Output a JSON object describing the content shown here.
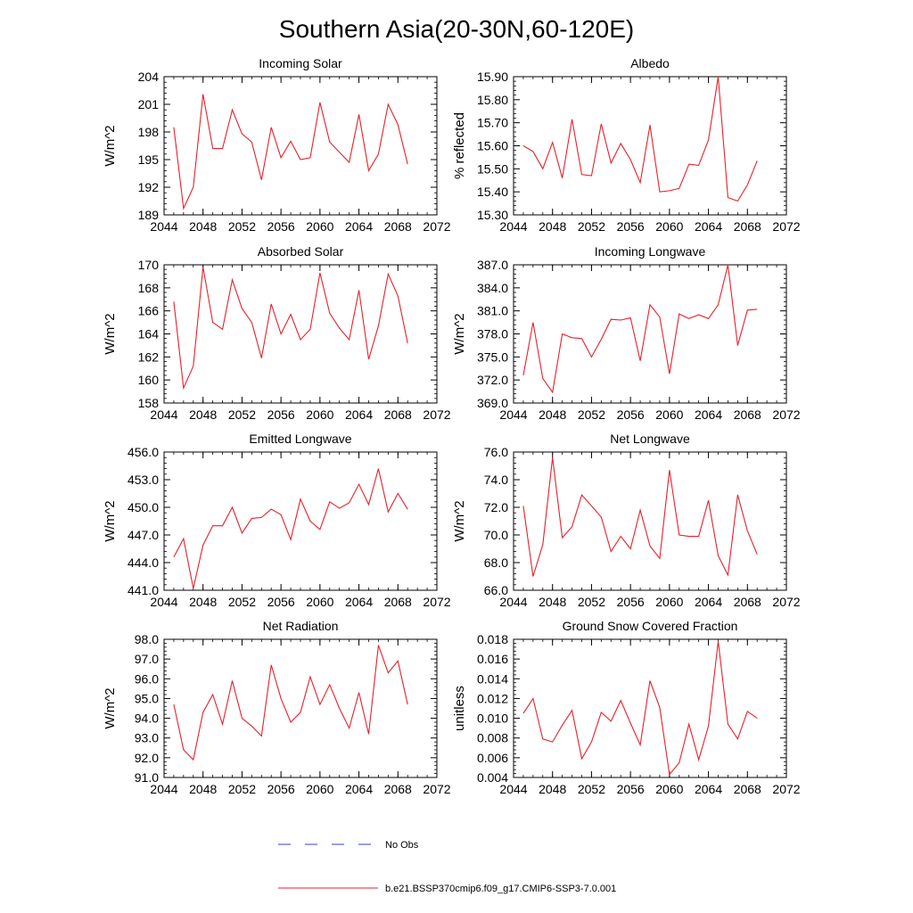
{
  "figure": {
    "title": "Southern Asia(20-30N,60-120E)",
    "legend": {
      "entries": [
        {
          "label": "No Obs",
          "style": "dashed",
          "color": "#3b3bd6"
        },
        {
          "label": "b.e21.BSSP370cmip6.f09_g17.CMIP6-SSP3-7.0.001",
          "style": "solid",
          "color": "#e8202a"
        }
      ]
    },
    "series_color": "#e8202a"
  },
  "chart_data": [
    {
      "type": "line",
      "title": "Incoming Solar",
      "ylabel": "W/m^2",
      "xlim": [
        2044,
        2072
      ],
      "ylim": [
        189,
        204
      ],
      "xticks": [
        2044,
        2048,
        2052,
        2056,
        2060,
        2064,
        2068,
        2072
      ],
      "xtick_labels": [
        "2044",
        "2048",
        "2052",
        "2056",
        "2060",
        "2064",
        "2068",
        "2072"
      ],
      "yticks": [
        189,
        192,
        195,
        198,
        201,
        204
      ],
      "ytick_labels": [
        "189",
        "192",
        "195",
        "198",
        "201",
        "204"
      ],
      "x": [
        2045,
        2046,
        2047,
        2048,
        2049,
        2050,
        2051,
        2052,
        2053,
        2054,
        2055,
        2056,
        2057,
        2058,
        2059,
        2060,
        2061,
        2062,
        2063,
        2064,
        2065,
        2066,
        2067,
        2068,
        2069
      ],
      "values": [
        198.5,
        189.7,
        192.0,
        202.1,
        196.2,
        196.2,
        200.4,
        197.8,
        196.9,
        192.8,
        198.5,
        195.2,
        197.0,
        195.0,
        195.2,
        201.2,
        196.9,
        195.8,
        194.7,
        199.9,
        193.8,
        195.6,
        201.0,
        198.8,
        194.5
      ]
    },
    {
      "type": "line",
      "title": "Albedo",
      "ylabel": "% reflected",
      "xlim": [
        2044,
        2072
      ],
      "ylim": [
        15.3,
        15.9
      ],
      "xticks": [
        2044,
        2048,
        2052,
        2056,
        2060,
        2064,
        2068,
        2072
      ],
      "xtick_labels": [
        "2044",
        "2048",
        "2052",
        "2056",
        "2060",
        "2064",
        "2068",
        "2072"
      ],
      "yticks": [
        15.3,
        15.4,
        15.5,
        15.6,
        15.7,
        15.8,
        15.9
      ],
      "ytick_labels": [
        "15.30",
        "15.40",
        "15.50",
        "15.60",
        "15.70",
        "15.80",
        "15.90"
      ],
      "x": [
        2045,
        2046,
        2047,
        2048,
        2049,
        2050,
        2051,
        2052,
        2053,
        2054,
        2055,
        2056,
        2057,
        2058,
        2059,
        2060,
        2061,
        2062,
        2063,
        2064,
        2065,
        2066,
        2067,
        2068,
        2069
      ],
      "values": [
        15.6,
        15.575,
        15.5,
        15.615,
        15.46,
        15.715,
        15.475,
        15.47,
        15.695,
        15.525,
        15.61,
        15.54,
        15.44,
        15.69,
        15.4,
        15.405,
        15.415,
        15.52,
        15.515,
        15.625,
        15.9,
        15.375,
        15.36,
        15.43,
        15.535
      ]
    },
    {
      "type": "line",
      "title": "Absorbed Solar",
      "ylabel": "W/m^2",
      "xlim": [
        2044,
        2072
      ],
      "ylim": [
        158,
        170
      ],
      "xticks": [
        2044,
        2048,
        2052,
        2056,
        2060,
        2064,
        2068,
        2072
      ],
      "xtick_labels": [
        "2044",
        "2048",
        "2052",
        "2056",
        "2060",
        "2064",
        "2068",
        "2072"
      ],
      "yticks": [
        158,
        160,
        162,
        164,
        166,
        168,
        170
      ],
      "ytick_labels": [
        "158",
        "160",
        "162",
        "164",
        "166",
        "168",
        "170"
      ],
      "x": [
        2045,
        2046,
        2047,
        2048,
        2049,
        2050,
        2051,
        2052,
        2053,
        2054,
        2055,
        2056,
        2057,
        2058,
        2059,
        2060,
        2061,
        2062,
        2063,
        2064,
        2065,
        2066,
        2067,
        2068,
        2069
      ],
      "values": [
        166.8,
        159.3,
        161.2,
        169.8,
        165.0,
        164.4,
        168.7,
        166.2,
        165.0,
        161.9,
        166.6,
        164.0,
        165.7,
        163.5,
        164.4,
        169.3,
        165.8,
        164.5,
        163.5,
        167.8,
        161.8,
        164.7,
        169.2,
        167.3,
        163.2
      ]
    },
    {
      "type": "line",
      "title": "Incoming Longwave",
      "ylabel": "W/m^2",
      "xlim": [
        2044,
        2072
      ],
      "ylim": [
        369.0,
        387.0
      ],
      "xticks": [
        2044,
        2048,
        2052,
        2056,
        2060,
        2064,
        2068,
        2072
      ],
      "xtick_labels": [
        "2044",
        "2048",
        "2052",
        "2056",
        "2060",
        "2064",
        "2068",
        "2072"
      ],
      "yticks": [
        369.0,
        372.0,
        375.0,
        378.0,
        381.0,
        384.0,
        387.0
      ],
      "ytick_labels": [
        "369.0",
        "372.0",
        "375.0",
        "378.0",
        "381.0",
        "384.0",
        "387.0"
      ],
      "x": [
        2045,
        2046,
        2047,
        2048,
        2049,
        2050,
        2051,
        2052,
        2053,
        2054,
        2055,
        2056,
        2057,
        2058,
        2059,
        2060,
        2061,
        2062,
        2063,
        2064,
        2065,
        2066,
        2067,
        2068,
        2069
      ],
      "values": [
        372.6,
        379.5,
        372.2,
        370.4,
        378.0,
        377.5,
        377.4,
        375.0,
        377.3,
        379.9,
        379.8,
        380.1,
        374.5,
        381.8,
        380.2,
        372.8,
        380.6,
        380.0,
        380.5,
        380.0,
        381.8,
        387.0,
        376.5,
        381.1,
        381.2
      ]
    },
    {
      "type": "line",
      "title": "Emitted Longwave",
      "ylabel": "W/m^2",
      "xlim": [
        2044,
        2072
      ],
      "ylim": [
        441.0,
        456.0
      ],
      "xticks": [
        2044,
        2048,
        2052,
        2056,
        2060,
        2064,
        2068,
        2072
      ],
      "xtick_labels": [
        "2044",
        "2048",
        "2052",
        "2056",
        "2060",
        "2064",
        "2068",
        "2072"
      ],
      "yticks": [
        441.0,
        444.0,
        447.0,
        450.0,
        453.0,
        456.0
      ],
      "ytick_labels": [
        "441.0",
        "444.0",
        "447.0",
        "450.0",
        "453.0",
        "456.0"
      ],
      "x": [
        2045,
        2046,
        2047,
        2048,
        2049,
        2050,
        2051,
        2052,
        2053,
        2054,
        2055,
        2056,
        2057,
        2058,
        2059,
        2060,
        2061,
        2062,
        2063,
        2064,
        2065,
        2066,
        2067,
        2068,
        2069
      ],
      "values": [
        444.6,
        446.6,
        441.2,
        445.9,
        448.0,
        448.0,
        450.0,
        447.2,
        448.8,
        448.9,
        449.8,
        449.2,
        446.5,
        450.9,
        448.5,
        447.6,
        450.6,
        449.9,
        450.5,
        452.5,
        450.3,
        454.2,
        449.5,
        451.5,
        449.8
      ]
    },
    {
      "type": "line",
      "title": "Net Longwave",
      "ylabel": "W/m^2",
      "xlim": [
        2044,
        2072
      ],
      "ylim": [
        66.0,
        76.0
      ],
      "xticks": [
        2044,
        2048,
        2052,
        2056,
        2060,
        2064,
        2068,
        2072
      ],
      "xtick_labels": [
        "2044",
        "2048",
        "2052",
        "2056",
        "2060",
        "2064",
        "2068",
        "2072"
      ],
      "yticks": [
        66.0,
        68.0,
        70.0,
        72.0,
        74.0,
        76.0
      ],
      "ytick_labels": [
        "66.0",
        "68.0",
        "70.0",
        "72.0",
        "74.0",
        "76.0"
      ],
      "x": [
        2045,
        2046,
        2047,
        2048,
        2049,
        2050,
        2051,
        2052,
        2053,
        2054,
        2055,
        2056,
        2057,
        2058,
        2059,
        2060,
        2061,
        2062,
        2063,
        2064,
        2065,
        2066,
        2067,
        2068,
        2069
      ],
      "values": [
        72.1,
        67.0,
        69.3,
        75.6,
        69.8,
        70.6,
        72.9,
        72.1,
        71.3,
        68.8,
        69.9,
        69.0,
        71.8,
        69.2,
        68.3,
        74.7,
        70.0,
        69.9,
        69.9,
        72.5,
        68.5,
        67.1,
        72.9,
        70.3,
        68.6
      ]
    },
    {
      "type": "line",
      "title": "Net Radiation",
      "ylabel": "W/m^2",
      "xlim": [
        2044,
        2072
      ],
      "ylim": [
        91.0,
        98.0
      ],
      "xticks": [
        2044,
        2048,
        2052,
        2056,
        2060,
        2064,
        2068,
        2072
      ],
      "xtick_labels": [
        "2044",
        "2048",
        "2052",
        "2056",
        "2060",
        "2064",
        "2068",
        "2072"
      ],
      "yticks": [
        91.0,
        92.0,
        93.0,
        94.0,
        95.0,
        96.0,
        97.0,
        98.0
      ],
      "ytick_labels": [
        "91.0",
        "92.0",
        "93.0",
        "94.0",
        "95.0",
        "96.0",
        "97.0",
        "98.0"
      ],
      "x": [
        2045,
        2046,
        2047,
        2048,
        2049,
        2050,
        2051,
        2052,
        2053,
        2054,
        2055,
        2056,
        2057,
        2058,
        2059,
        2060,
        2061,
        2062,
        2063,
        2064,
        2065,
        2066,
        2067,
        2068,
        2069
      ],
      "values": [
        94.7,
        92.4,
        91.9,
        94.3,
        95.2,
        93.7,
        95.9,
        94.0,
        93.6,
        93.1,
        96.7,
        95.0,
        93.8,
        94.3,
        96.1,
        94.7,
        95.7,
        94.5,
        93.5,
        95.3,
        93.2,
        97.7,
        96.3,
        96.9,
        94.7
      ]
    },
    {
      "type": "line",
      "title": "Ground Snow Covered Fraction",
      "ylabel": "unitless",
      "xlim": [
        2044,
        2072
      ],
      "ylim": [
        0.004,
        0.018
      ],
      "xticks": [
        2044,
        2048,
        2052,
        2056,
        2060,
        2064,
        2068,
        2072
      ],
      "xtick_labels": [
        "2044",
        "2048",
        "2052",
        "2056",
        "2060",
        "2064",
        "2068",
        "2072"
      ],
      "yticks": [
        0.004,
        0.006,
        0.008,
        0.01,
        0.012,
        0.014,
        0.016,
        0.018
      ],
      "ytick_labels": [
        "0.004",
        "0.006",
        "0.008",
        "0.010",
        "0.012",
        "0.014",
        "0.016",
        "0.018"
      ],
      "x": [
        2045,
        2046,
        2047,
        2048,
        2049,
        2050,
        2051,
        2052,
        2053,
        2054,
        2055,
        2056,
        2057,
        2058,
        2059,
        2060,
        2061,
        2062,
        2063,
        2064,
        2065,
        2066,
        2067,
        2068,
        2069
      ],
      "values": [
        0.0105,
        0.012,
        0.0079,
        0.0076,
        0.0093,
        0.0108,
        0.0059,
        0.0076,
        0.0106,
        0.0097,
        0.0118,
        0.0095,
        0.0073,
        0.0138,
        0.0111,
        0.0043,
        0.0055,
        0.0094,
        0.0058,
        0.0092,
        0.0178,
        0.0094,
        0.0079,
        0.0107,
        0.01
      ]
    }
  ]
}
